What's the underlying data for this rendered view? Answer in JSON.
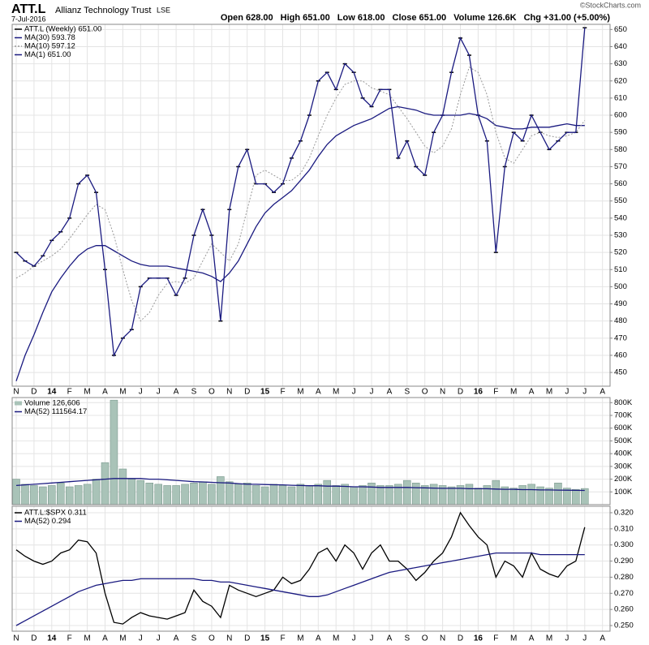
{
  "header": {
    "symbol": "ATT.L",
    "name": "Allianz Technology Trust",
    "exchange": "LSE",
    "date": "7-Jul-2016",
    "quote": [
      "Open 628.00",
      "High 651.00",
      "Low 618.00",
      "Close 651.00",
      "Volume 126.6K",
      "Chg +31.00 (+5.00%)"
    ],
    "credit": "©StockCharts.com"
  },
  "chart_data": [
    {
      "type": "line",
      "categories": [
        "N",
        null,
        "D",
        null,
        "14",
        null,
        "F",
        null,
        "M",
        null,
        "A",
        null,
        "M",
        null,
        "J",
        null,
        "J",
        null,
        "A",
        null,
        "S",
        null,
        "O",
        null,
        "N",
        null,
        "D",
        null,
        "15",
        null,
        "F",
        null,
        "M",
        null,
        "A",
        null,
        "M",
        null,
        "J",
        null,
        "J",
        null,
        "A",
        null,
        "S",
        null,
        "O",
        null,
        "N",
        null,
        "D",
        null,
        "16",
        null,
        "F",
        null,
        "M",
        null,
        "A",
        null,
        "M",
        null,
        "J",
        null,
        "J",
        null,
        "A",
        null
      ],
      "ylim": [
        442,
        653
      ],
      "yticks": [
        450,
        460,
        470,
        480,
        490,
        500,
        510,
        520,
        530,
        540,
        550,
        560,
        570,
        580,
        590,
        600,
        610,
        620,
        630,
        640,
        650
      ],
      "grid": true,
      "series": [
        {
          "name": "ATT.L (Weekly) 651.00",
          "color": "#000000",
          "style": "markers",
          "values": [
            520,
            515,
            512,
            518,
            527,
            532,
            540,
            560,
            565,
            555,
            510,
            460,
            470,
            475,
            500,
            505,
            505,
            505,
            495,
            505,
            530,
            545,
            530,
            480,
            545,
            570,
            580,
            560,
            560,
            555,
            560,
            575,
            585,
            600,
            620,
            625,
            615,
            630,
            625,
            610,
            605,
            615,
            615,
            575,
            585,
            570,
            565,
            590,
            600,
            625,
            645,
            635,
            600,
            585,
            520,
            570,
            590,
            585,
            600,
            590,
            580,
            585,
            590,
            590,
            651,
            null,
            null,
            null
          ]
        },
        {
          "name": "MA(30) 593.78",
          "color": "#1a1a80",
          "style": "line",
          "values": [
            445,
            460,
            472,
            485,
            497,
            505,
            512,
            518,
            522,
            524,
            524,
            521,
            518,
            515,
            513,
            512,
            512,
            512,
            511,
            510,
            509,
            508,
            506,
            503,
            508,
            515,
            525,
            535,
            543,
            548,
            552,
            556,
            562,
            568,
            576,
            583,
            588,
            591,
            594,
            596,
            598,
            601,
            604,
            605,
            604,
            603,
            601,
            600,
            600,
            600,
            600,
            601,
            600,
            598,
            594,
            593,
            592,
            592,
            593,
            593,
            593,
            594,
            595,
            594,
            594,
            null,
            null,
            null
          ]
        },
        {
          "name": "MA(10) 597.12",
          "color": "#999999",
          "style": "dotted",
          "values": [
            505,
            508,
            512,
            515,
            518,
            522,
            528,
            535,
            542,
            548,
            545,
            530,
            510,
            492,
            480,
            485,
            495,
            502,
            503,
            502,
            505,
            515,
            525,
            520,
            515,
            525,
            545,
            565,
            568,
            565,
            562,
            562,
            566,
            575,
            588,
            600,
            610,
            618,
            620,
            620,
            616,
            614,
            612,
            605,
            598,
            590,
            582,
            578,
            582,
            592,
            612,
            628,
            625,
            612,
            590,
            575,
            572,
            580,
            588,
            590,
            588,
            587,
            588,
            590,
            597,
            null,
            null,
            null
          ]
        },
        {
          "name": "MA(1) 651.00",
          "color": "#1a1a80",
          "style": "line",
          "values": [
            520,
            515,
            512,
            518,
            527,
            532,
            540,
            560,
            565,
            555,
            510,
            460,
            470,
            475,
            500,
            505,
            505,
            505,
            495,
            505,
            530,
            545,
            530,
            480,
            545,
            570,
            580,
            560,
            560,
            555,
            560,
            575,
            585,
            600,
            620,
            625,
            615,
            630,
            625,
            610,
            605,
            615,
            615,
            575,
            585,
            570,
            565,
            590,
            600,
            625,
            645,
            635,
            600,
            585,
            520,
            570,
            590,
            585,
            600,
            590,
            580,
            585,
            590,
            590,
            651,
            null,
            null,
            null
          ]
        }
      ]
    },
    {
      "type": "bar",
      "ylim": [
        0,
        840000
      ],
      "yticks": [
        {
          "value": 100000,
          "label": "100K"
        },
        {
          "value": 200000,
          "label": "200K"
        },
        {
          "value": 300000,
          "label": "300K"
        },
        {
          "value": 400000,
          "label": "400K"
        },
        {
          "value": 500000,
          "label": "500K"
        },
        {
          "value": 600000,
          "label": "600K"
        },
        {
          "value": 700000,
          "label": "700K"
        },
        {
          "value": 800000,
          "label": "800K"
        }
      ],
      "grid": true,
      "series": [
        {
          "name": "Volume 126,606",
          "color": "#a9c3b8",
          "style": "bar",
          "values": [
            200000,
            160000,
            150000,
            140000,
            150000,
            170000,
            140000,
            150000,
            160000,
            200000,
            330000,
            820000,
            280000,
            200000,
            190000,
            170000,
            160000,
            150000,
            150000,
            160000,
            170000,
            180000,
            160000,
            220000,
            180000,
            160000,
            170000,
            150000,
            140000,
            160000,
            150000,
            140000,
            160000,
            150000,
            160000,
            190000,
            150000,
            160000,
            140000,
            150000,
            170000,
            150000,
            150000,
            160000,
            190000,
            170000,
            150000,
            160000,
            150000,
            140000,
            150000,
            160000,
            130000,
            150000,
            190000,
            140000,
            130000,
            150000,
            160000,
            140000,
            130000,
            170000,
            130000,
            120000,
            126606,
            null,
            null,
            null
          ]
        },
        {
          "name": "MA(52) 111564.17",
          "color": "#1a1a80",
          "style": "line",
          "values": [
            150000,
            155000,
            160000,
            165000,
            170000,
            175000,
            180000,
            185000,
            190000,
            195000,
            200000,
            205000,
            205000,
            205000,
            205000,
            200000,
            200000,
            195000,
            190000,
            185000,
            180000,
            178000,
            175000,
            172000,
            170000,
            165000,
            160000,
            160000,
            158000,
            156000,
            155000,
            152000,
            150000,
            148000,
            148000,
            145000,
            145000,
            143000,
            140000,
            140000,
            138000,
            135000,
            135000,
            135000,
            135000,
            133000,
            132000,
            130000,
            128000,
            128000,
            128000,
            125000,
            125000,
            125000,
            122000,
            120000,
            120000,
            118000,
            118000,
            115000,
            115000,
            114000,
            113000,
            112000,
            111564.17,
            null,
            null,
            null
          ]
        }
      ]
    },
    {
      "type": "line",
      "ylim": [
        0.2465,
        0.324
      ],
      "yticks": [
        {
          "value": 0.25,
          "label": "0.250"
        },
        {
          "value": 0.26,
          "label": "0.260"
        },
        {
          "value": 0.27,
          "label": "0.270"
        },
        {
          "value": 0.28,
          "label": "0.280"
        },
        {
          "value": 0.29,
          "label": "0.290"
        },
        {
          "value": 0.3,
          "label": "0.300"
        },
        {
          "value": 0.31,
          "label": "0.310"
        },
        {
          "value": 0.32,
          "label": "0.320"
        }
      ],
      "grid": true,
      "series": [
        {
          "name": "ATT.L:$SPX 0.311",
          "color": "#000000",
          "style": "line",
          "values": [
            0.297,
            0.293,
            0.29,
            0.288,
            0.29,
            0.295,
            0.297,
            0.303,
            0.302,
            0.295,
            0.27,
            0.252,
            0.251,
            0.255,
            0.258,
            0.256,
            0.255,
            0.254,
            0.256,
            0.258,
            0.272,
            0.265,
            0.262,
            0.255,
            0.275,
            0.272,
            0.27,
            0.268,
            0.27,
            0.272,
            0.28,
            0.276,
            0.278,
            0.285,
            0.295,
            0.298,
            0.29,
            0.3,
            0.295,
            0.285,
            0.295,
            0.3,
            0.29,
            0.29,
            0.285,
            0.278,
            0.283,
            0.29,
            0.295,
            0.305,
            0.32,
            0.312,
            0.305,
            0.3,
            0.28,
            0.29,
            0.287,
            0.28,
            0.295,
            0.285,
            0.282,
            0.28,
            0.287,
            0.29,
            0.311,
            null,
            null,
            null
          ]
        },
        {
          "name": "MA(52) 0.294",
          "color": "#1a1a80",
          "style": "line",
          "values": [
            0.25,
            0.253,
            0.256,
            0.259,
            0.262,
            0.265,
            0.268,
            0.271,
            0.273,
            0.275,
            0.276,
            0.277,
            0.278,
            0.278,
            0.279,
            0.279,
            0.279,
            0.279,
            0.279,
            0.279,
            0.279,
            0.278,
            0.278,
            0.277,
            0.277,
            0.276,
            0.275,
            0.274,
            0.273,
            0.272,
            0.271,
            0.27,
            0.269,
            0.268,
            0.268,
            0.269,
            0.271,
            0.273,
            0.275,
            0.277,
            0.279,
            0.281,
            0.283,
            0.284,
            0.285,
            0.286,
            0.287,
            0.288,
            0.289,
            0.29,
            0.291,
            0.292,
            0.293,
            0.294,
            0.295,
            0.295,
            0.295,
            0.295,
            0.295,
            0.294,
            0.294,
            0.294,
            0.294,
            0.294,
            0.294,
            null,
            null,
            null
          ]
        }
      ]
    }
  ]
}
